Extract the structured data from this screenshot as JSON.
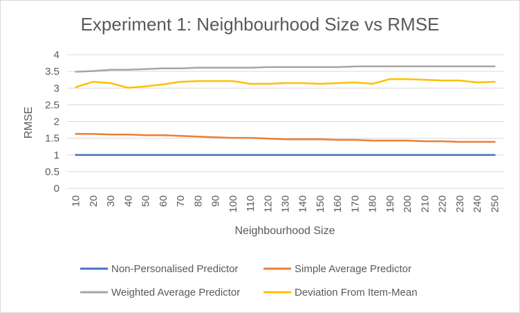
{
  "chart_data": {
    "type": "line",
    "title": "Experiment 1: Neighbourhood Size vs RMSE",
    "xlabel": "Neighbourhood Size",
    "ylabel": "RMSE",
    "ylim": [
      0,
      4
    ],
    "yticks": [
      0,
      0.5,
      1,
      1.5,
      2,
      2.5,
      3,
      3.5,
      4
    ],
    "grid": true,
    "legend_position": "bottom",
    "x": [
      10,
      20,
      30,
      40,
      50,
      60,
      70,
      80,
      90,
      100,
      110,
      120,
      130,
      140,
      150,
      160,
      170,
      180,
      190,
      200,
      210,
      220,
      230,
      240,
      250
    ],
    "series": [
      {
        "name": "Non-Personalised Predictor",
        "color": "#4472c4",
        "values": [
          1.0,
          1.0,
          1.0,
          1.0,
          1.0,
          1.0,
          1.0,
          1.0,
          1.0,
          1.0,
          1.0,
          1.0,
          1.0,
          1.0,
          1.0,
          1.0,
          1.0,
          1.0,
          1.0,
          1.0,
          1.0,
          1.0,
          1.0,
          1.0,
          1.0
        ]
      },
      {
        "name": "Simple Average Predictor",
        "color": "#ed7d31",
        "values": [
          1.63,
          1.63,
          1.61,
          1.61,
          1.59,
          1.59,
          1.57,
          1.55,
          1.53,
          1.51,
          1.51,
          1.49,
          1.47,
          1.47,
          1.47,
          1.45,
          1.45,
          1.43,
          1.43,
          1.43,
          1.41,
          1.41,
          1.39,
          1.39,
          1.39
        ]
      },
      {
        "name": "Weighted Average Predictor",
        "color": "#a5a5a5",
        "values": [
          3.49,
          3.51,
          3.55,
          3.55,
          3.57,
          3.59,
          3.59,
          3.61,
          3.61,
          3.61,
          3.61,
          3.63,
          3.63,
          3.63,
          3.63,
          3.63,
          3.65,
          3.65,
          3.65,
          3.65,
          3.65,
          3.65,
          3.65,
          3.65,
          3.65
        ]
      },
      {
        "name": "Deviation From Item-Mean",
        "color": "#ffc000",
        "values": [
          3.03,
          3.19,
          3.15,
          3.01,
          3.05,
          3.11,
          3.19,
          3.21,
          3.21,
          3.21,
          3.13,
          3.13,
          3.15,
          3.15,
          3.13,
          3.15,
          3.17,
          3.13,
          3.27,
          3.27,
          3.25,
          3.23,
          3.23,
          3.17,
          3.19
        ]
      }
    ]
  }
}
